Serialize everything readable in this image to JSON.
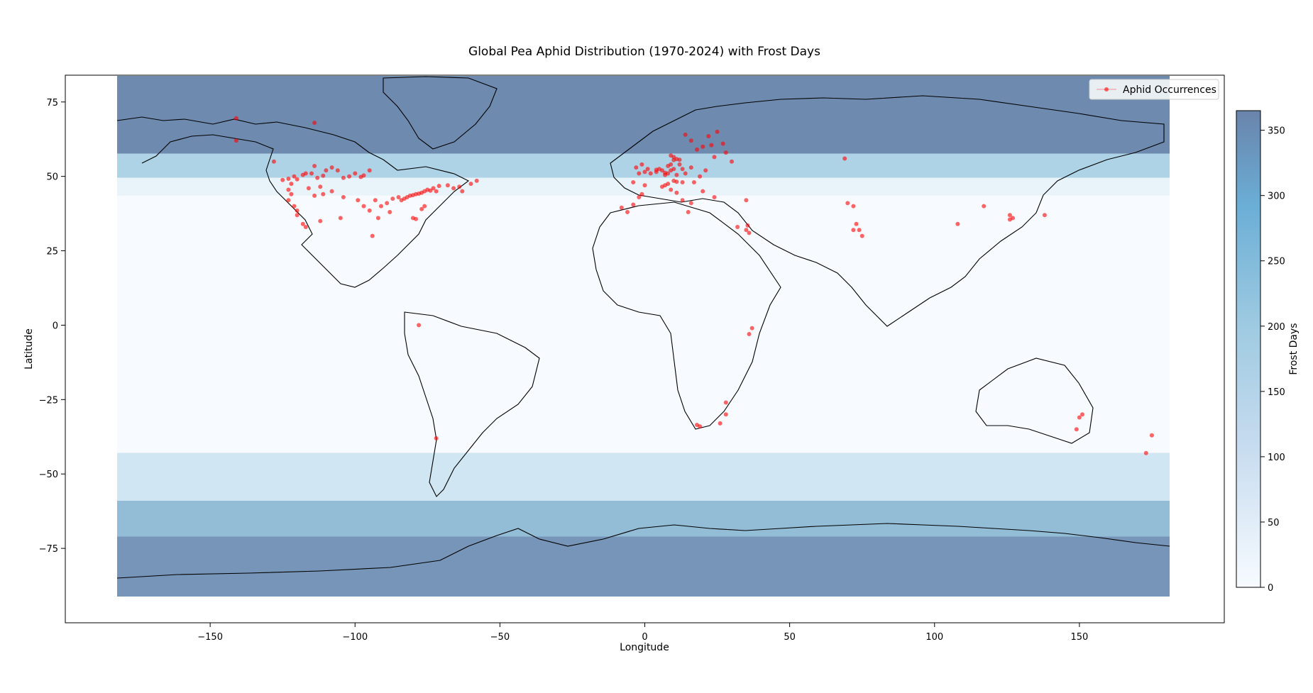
{
  "title": "Global Pea Aphid Distribution (1970-2024) with Frost Days",
  "xlabel": "Longitude",
  "ylabel": "Latitude",
  "colorbar_label": "Frost Days",
  "legend": {
    "label": "Aphid Occurrences",
    "placement": "top-right",
    "marker_color": "#ff0000"
  },
  "colors": {
    "frost_low": "#f7fbff",
    "frost_mid": "#9ecae1",
    "frost_high": "#6a84ab",
    "occurrence": "#ff0000",
    "coastline": "#000000"
  },
  "chart_data": {
    "type": "scatter",
    "title": "Global Pea Aphid Distribution (1970-2024) with Frost Days",
    "xlabel": "Longitude",
    "ylabel": "Latitude",
    "xlim": [
      -200,
      200
    ],
    "ylim": [
      -100,
      84
    ],
    "xticks": [
      -150,
      -100,
      -50,
      0,
      50,
      100,
      150
    ],
    "xtick_labels": [
      "−150",
      "−100",
      "−50",
      "0",
      "50",
      "100",
      "150"
    ],
    "yticks": [
      75,
      50,
      25,
      0,
      -25,
      -50,
      -75
    ],
    "ytick_labels": [
      "75",
      "50",
      "25",
      "0",
      "−25",
      "−50",
      "−75"
    ],
    "colorbar": {
      "label": "Frost Days",
      "range": [
        0,
        365
      ],
      "ticks": [
        0,
        50,
        100,
        150,
        200,
        250,
        300,
        350
      ],
      "colormap": "Blues"
    },
    "frost_bands": [
      {
        "lat_from": 84,
        "lat_to": 58,
        "frost_days": 350
      },
      {
        "lat_from": 58,
        "lat_to": 50,
        "frost_days": 150
      },
      {
        "lat_from": 50,
        "lat_to": 44,
        "frost_days": 30
      },
      {
        "lat_from": 44,
        "lat_to": -42,
        "frost_days": 0
      },
      {
        "lat_from": -42,
        "lat_to": -58,
        "frost_days": 80
      },
      {
        "lat_from": -58,
        "lat_to": -70,
        "frost_days": 220
      },
      {
        "lat_from": -70,
        "lat_to": -90,
        "frost_days": 320
      }
    ],
    "series": [
      {
        "name": "Aphid Occurrences",
        "points": [
          [
            -141,
            69.5
          ],
          [
            -141,
            62
          ],
          [
            -114,
            68
          ],
          [
            -128,
            55
          ],
          [
            -125,
            48.8
          ],
          [
            -123,
            49.2
          ],
          [
            -122,
            47.5
          ],
          [
            -121,
            50
          ],
          [
            -120,
            49
          ],
          [
            -118,
            50.5
          ],
          [
            -117,
            51
          ],
          [
            -115,
            51
          ],
          [
            -114,
            53.5
          ],
          [
            -113,
            49.5
          ],
          [
            -111,
            50.2
          ],
          [
            -110,
            52
          ],
          [
            -108,
            53
          ],
          [
            -106,
            52
          ],
          [
            -104,
            49.5
          ],
          [
            -102,
            50
          ],
          [
            -100,
            51
          ],
          [
            -98,
            49.8
          ],
          [
            -97,
            50.3
          ],
          [
            -95,
            52
          ],
          [
            -123,
            45.5
          ],
          [
            -122,
            44
          ],
          [
            -123,
            42
          ],
          [
            -121,
            40
          ],
          [
            -120,
            38.5
          ],
          [
            -118,
            34
          ],
          [
            -117,
            33
          ],
          [
            -120,
            37
          ],
          [
            -114,
            43.5
          ],
          [
            -116,
            46
          ],
          [
            -112,
            46.5
          ],
          [
            -111,
            44
          ],
          [
            -108,
            45
          ],
          [
            -104,
            43
          ],
          [
            -99,
            42
          ],
          [
            -97,
            40
          ],
          [
            -95,
            38.5
          ],
          [
            -93,
            42
          ],
          [
            -91,
            40
          ],
          [
            -89,
            41
          ],
          [
            -88,
            38
          ],
          [
            -87,
            42.5
          ],
          [
            -85,
            43
          ],
          [
            -84,
            42
          ],
          [
            -83,
            42.5
          ],
          [
            -82,
            43
          ],
          [
            -81,
            43.5
          ],
          [
            -80,
            43.7
          ],
          [
            -79,
            44
          ],
          [
            -78,
            44.2
          ],
          [
            -77,
            44.5
          ],
          [
            -76,
            45
          ],
          [
            -75,
            45.5
          ],
          [
            -74,
            45.2
          ],
          [
            -73,
            46
          ],
          [
            -72,
            45
          ],
          [
            -71,
            46.8
          ],
          [
            -68,
            47
          ],
          [
            -66,
            46
          ],
          [
            -64,
            46.5
          ],
          [
            -63,
            45
          ],
          [
            -60,
            47.5
          ],
          [
            -58,
            48.5
          ],
          [
            -76,
            40
          ],
          [
            -77,
            39
          ],
          [
            -80,
            36
          ],
          [
            -79,
            35.7
          ],
          [
            -92,
            36
          ],
          [
            -94,
            30
          ],
          [
            -105,
            36
          ],
          [
            -112,
            35
          ],
          [
            -78,
            0
          ],
          [
            -72,
            -38
          ],
          [
            -8,
            39.5
          ],
          [
            -6,
            38
          ],
          [
            -4,
            40.5
          ],
          [
            -2,
            43
          ],
          [
            -1,
            44
          ],
          [
            0,
            47
          ],
          [
            -4,
            48
          ],
          [
            -2,
            51
          ],
          [
            0,
            51.5
          ],
          [
            1,
            52.5
          ],
          [
            -3,
            53
          ],
          [
            -1,
            54
          ],
          [
            2,
            51
          ],
          [
            4,
            51.5
          ],
          [
            4,
            52.2
          ],
          [
            5,
            52.5
          ],
          [
            6,
            52
          ],
          [
            7,
            51.2
          ],
          [
            7,
            50.5
          ],
          [
            8,
            51
          ],
          [
            9,
            52
          ],
          [
            10,
            52.5
          ],
          [
            8,
            53.5
          ],
          [
            9,
            54
          ],
          [
            10,
            55.5
          ],
          [
            11,
            55.8
          ],
          [
            12,
            55.6
          ],
          [
            10,
            56.5
          ],
          [
            9,
            57
          ],
          [
            12,
            54
          ],
          [
            13,
            52.5
          ],
          [
            14,
            51
          ],
          [
            11,
            50.5
          ],
          [
            10,
            48.5
          ],
          [
            11,
            48.2
          ],
          [
            13,
            48
          ],
          [
            8,
            47.5
          ],
          [
            7,
            47
          ],
          [
            6,
            46.5
          ],
          [
            9,
            45.5
          ],
          [
            11,
            44.5
          ],
          [
            13,
            42
          ],
          [
            16,
            41
          ],
          [
            15,
            38
          ],
          [
            24,
            43
          ],
          [
            20,
            45
          ],
          [
            17,
            48
          ],
          [
            21,
            52
          ],
          [
            19,
            50
          ],
          [
            16,
            53
          ],
          [
            18,
            59
          ],
          [
            16,
            62
          ],
          [
            14,
            64
          ],
          [
            20,
            60
          ],
          [
            23,
            60.5
          ],
          [
            25,
            65
          ],
          [
            27,
            61
          ],
          [
            22,
            63.5
          ],
          [
            28,
            58
          ],
          [
            24,
            56.5
          ],
          [
            30,
            55
          ],
          [
            35,
            42
          ],
          [
            32,
            33
          ],
          [
            35,
            32
          ],
          [
            35.5,
            33.5
          ],
          [
            36,
            31
          ],
          [
            69,
            56
          ],
          [
            70,
            41
          ],
          [
            72,
            40
          ],
          [
            73,
            34
          ],
          [
            74,
            32
          ],
          [
            72,
            32
          ],
          [
            75,
            30
          ],
          [
            108,
            34
          ],
          [
            117,
            40
          ],
          [
            126,
            37
          ],
          [
            127,
            36
          ],
          [
            126,
            35.5
          ],
          [
            138,
            37
          ],
          [
            36,
            -3
          ],
          [
            37,
            -1
          ],
          [
            28,
            -26
          ],
          [
            28,
            -30
          ],
          [
            26,
            -33
          ],
          [
            19,
            -34
          ],
          [
            18,
            -33.5
          ],
          [
            150,
            -31
          ],
          [
            151,
            -30
          ],
          [
            149,
            -35
          ],
          [
            175,
            -37
          ],
          [
            173,
            -43
          ]
        ]
      }
    ]
  }
}
